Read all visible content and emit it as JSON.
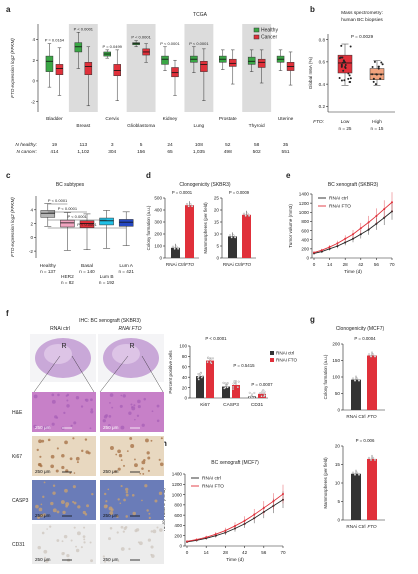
{
  "chart_data": [
    {
      "panel": "a",
      "type": "box",
      "title": "TCGA",
      "ylabel": "FTO expression log2 (FPKM)",
      "ylim": [
        -3,
        5.5
      ],
      "yticks": [
        -2,
        0,
        2,
        4
      ],
      "legend": [
        "Healthy",
        "Cancer"
      ],
      "legend_placement": "top-right",
      "colors": {
        "healthy": "#3aa745",
        "cancer": "#e0303a"
      },
      "categories": [
        "Bladder",
        "Breast",
        "Cervix",
        "Glioblastoma",
        "Kidney",
        "Lung",
        "Prostate",
        "Thyroid",
        "Uterine"
      ],
      "pvalues": [
        "P = 0.0164",
        "P < 0.0001",
        "P = 0.0499",
        "P < 0.0001",
        "P < 0.0001",
        "P < 0.0001",
        "",
        "",
        ""
      ],
      "n_healthy": [
        "19",
        "113",
        "3",
        "5",
        "24",
        "108",
        "52",
        "58",
        "35"
      ],
      "n_cancer": [
        "414",
        "1,102",
        "304",
        "156",
        "65",
        "1,035",
        "498",
        "502",
        "551"
      ],
      "n_healthy_label": "N healthy:",
      "n_cancer_label": "N cancer:",
      "series": [
        {
          "name": "Healthy",
          "values": [
            [
              -0.6,
              0.9,
              1.9,
              2.4,
              3.6
            ],
            [
              1.2,
              2.8,
              3.3,
              3.7,
              4.7
            ],
            [
              2.2,
              2.4,
              2.6,
              2.8,
              3.0
            ],
            [
              3.3,
              3.5,
              3.6,
              3.7,
              3.9
            ],
            [
              1.0,
              1.6,
              2.1,
              2.4,
              3.3
            ],
            [
              0.8,
              1.8,
              2.1,
              2.4,
              3.3
            ],
            [
              1.1,
              1.8,
              2.1,
              2.4,
              3.0
            ],
            [
              0.9,
              1.6,
              1.9,
              2.3,
              3.0
            ],
            [
              1.0,
              1.8,
              2.1,
              2.4,
              3.0
            ]
          ]
        },
        {
          "name": "Cancer",
          "values": [
            [
              -1.4,
              0.6,
              1.2,
              1.6,
              3.2
            ],
            [
              -2.4,
              0.6,
              1.4,
              1.8,
              3.3
            ],
            [
              -1.9,
              0.5,
              1.0,
              1.6,
              3.0
            ],
            [
              1.8,
              2.5,
              2.8,
              3.1,
              3.6
            ],
            [
              -1.4,
              0.4,
              0.8,
              1.3,
              2.0
            ],
            [
              -1.9,
              0.9,
              1.6,
              1.9,
              3.1
            ],
            [
              -0.3,
              1.4,
              1.7,
              2.1,
              3.0
            ],
            [
              -0.2,
              1.3,
              1.8,
              2.1,
              3.0
            ],
            [
              -0.4,
              1.0,
              1.4,
              1.8,
              2.8
            ]
          ]
        }
      ]
    },
    {
      "panel": "b",
      "type": "box",
      "title": "Mass spectrometry:",
      "subtitle": "human BC biopsies",
      "ylabel": "Global m6A (%)",
      "ylim": [
        0.15,
        0.85
      ],
      "yticks": [
        0.2,
        0.4,
        0.6,
        0.8
      ],
      "pvalue": "P = 0.0029",
      "categories": [
        "Low",
        "High"
      ],
      "group_label": "FTO:",
      "n": [
        "n = 25",
        "n = 15"
      ],
      "boxes": [
        [
          0.39,
          0.5,
          0.59,
          0.66,
          0.76
        ],
        [
          0.39,
          0.44,
          0.49,
          0.54,
          0.61
        ]
      ]
    },
    {
      "panel": "c",
      "type": "box",
      "title": "BC subtypes",
      "ylabel": "FTO expression log2 (FPKM)",
      "ylim": [
        -3,
        6
      ],
      "yticks": [
        -2,
        0,
        2,
        4
      ],
      "categories": [
        "Healthy",
        "Basal",
        "HER2",
        "Lum A",
        "Lum B"
      ],
      "n": [
        "n = 137",
        "n = 140",
        "n = 82",
        "n = 421",
        "n = 192"
      ],
      "pvalues": [
        "P < 0.0001",
        "P < 0.0001",
        "P < 0.0001",
        "P < 0.0001"
      ],
      "colors": [
        "#b5b5b5",
        "#e0303a",
        "#f2a5c0",
        "#2547c2",
        "#1fc0e6"
      ],
      "boxes": [
        [
          1.6,
          2.9,
          3.5,
          3.9,
          4.9
        ],
        [
          -1.8,
          1.4,
          2.0,
          2.4,
          3.4
        ],
        [
          -1.9,
          1.5,
          2.1,
          2.5,
          3.6
        ],
        [
          -1.2,
          1.6,
          2.2,
          2.6,
          3.7
        ],
        [
          -1.6,
          1.8,
          2.4,
          2.8,
          3.9
        ]
      ]
    },
    {
      "panel": "d",
      "type": "bar",
      "title": "Clonogenicity (SKBR3)",
      "pvalues": [
        "P = 0.0001",
        "P = 0.0009"
      ],
      "categories": [
        "RNAi Ctrl",
        "FTO"
      ],
      "subcharts": [
        {
          "ylabel": "Colony formation (a.u.)",
          "ylim": [
            0,
            500
          ],
          "yticks": [
            0,
            100,
            200,
            300,
            400,
            500
          ],
          "values": [
            85,
            440
          ]
        },
        {
          "ylabel": "Mammospheres (per field)",
          "ylim": [
            0,
            25
          ],
          "yticks": [
            0,
            5,
            10,
            15,
            20,
            25
          ],
          "values": [
            9,
            18
          ]
        }
      ]
    },
    {
      "panel": "e",
      "type": "line",
      "title": "BC xenograft (SKBR3)",
      "xlabel": "Time (d)",
      "ylabel": "Tumor volume (mm3)",
      "xlim": [
        0,
        70
      ],
      "ylim": [
        0,
        1400
      ],
      "xticks": [
        0,
        14,
        28,
        42,
        56,
        70
      ],
      "yticks": [
        0,
        200,
        400,
        600,
        800,
        1000,
        1200,
        1400
      ],
      "legend_placement": "top-left",
      "x": [
        0,
        7,
        14,
        21,
        28,
        35,
        42,
        49,
        56,
        63,
        70
      ],
      "series": [
        {
          "name": "RNAi ctrl",
          "values": [
            100,
            140,
            200,
            260,
            340,
            420,
            520,
            620,
            750,
            880,
            1020
          ]
        },
        {
          "name": "RNAi FTO",
          "values": [
            120,
            170,
            240,
            320,
            420,
            520,
            650,
            780,
            920,
            1070,
            1220
          ]
        }
      ]
    },
    {
      "panel": "f",
      "type": "bar",
      "title": "IHC: BC xenograft (SKBR3)",
      "ylabel": "Percent positive cells",
      "ylim": [
        0,
        100
      ],
      "yticks": [
        0,
        20,
        40,
        60,
        80,
        100
      ],
      "categories": [
        "Ki67",
        "CASP3",
        "CD31"
      ],
      "pvalues": [
        "P < 0.0001",
        "P = 0.5415",
        "P = 0.0007"
      ],
      "series": [
        {
          "name": "RNAi ctrl",
          "values": [
            42,
            22,
            3
          ]
        },
        {
          "name": "RNAi FTO",
          "values": [
            72,
            25,
            8
          ]
        }
      ],
      "image_labels": {
        "col1": "RNAi ctrl",
        "col2": "RNAi FTO",
        "rows": [
          "H&E",
          "Ki67",
          "CASP3",
          "CD31"
        ],
        "scale": "250 μm",
        "marker": "R"
      }
    },
    {
      "panel": "g",
      "type": "bar",
      "title": "Clonogenicity (MCF7)",
      "pvalues": [
        "P = 0.0004",
        "P = 0.006"
      ],
      "categories": [
        "RNAi Ctrl",
        "FTO"
      ],
      "subcharts": [
        {
          "ylabel": "Colony formation (a.u.)",
          "ylim": [
            0,
            200
          ],
          "yticks": [
            0,
            50,
            100,
            150,
            200
          ],
          "values": [
            92,
            165
          ]
        },
        {
          "ylabel": "Mammospheres (per field)",
          "ylim": [
            0,
            20
          ],
          "yticks": [
            0,
            5,
            10,
            15,
            20
          ],
          "values": [
            12.5,
            16.5
          ]
        }
      ]
    },
    {
      "panel": "h",
      "type": "line",
      "title": "BC xenograft (MCF7)",
      "xlabel": "Time (d)",
      "ylabel": "Tumor volume (mm3)",
      "xlim": [
        0,
        70
      ],
      "ylim": [
        0,
        1400
      ],
      "xticks": [
        0,
        14,
        28,
        42,
        56,
        70
      ],
      "yticks": [
        0,
        200,
        400,
        600,
        800,
        1000,
        1200,
        1400
      ],
      "legend_placement": "top-left",
      "x": [
        0,
        7,
        14,
        21,
        28,
        35,
        42,
        49,
        56,
        63,
        70
      ],
      "series": [
        {
          "name": "RNAi ctrl",
          "values": [
            80,
            110,
            150,
            200,
            260,
            340,
            430,
            540,
            660,
            780,
            900
          ]
        },
        {
          "name": "RNAi FTO",
          "values": [
            90,
            125,
            170,
            230,
            300,
            390,
            490,
            610,
            740,
            870,
            1010
          ]
        }
      ]
    }
  ]
}
